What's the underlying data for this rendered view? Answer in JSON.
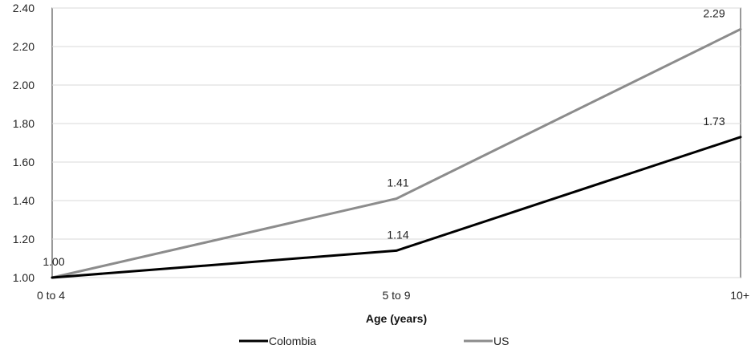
{
  "chart_data": {
    "type": "line",
    "categories": [
      "0 to 4",
      "5 to 9",
      "10+"
    ],
    "series": [
      {
        "name": "Colombia",
        "values": [
          1.0,
          1.14,
          1.73
        ],
        "labels": [
          "",
          "1.14",
          "1.73"
        ],
        "color": "#000000"
      },
      {
        "name": "US",
        "values": [
          1.0,
          1.41,
          2.29
        ],
        "labels": [
          "1.00",
          "1.41",
          "2.29"
        ],
        "color": "#8c8c8c"
      }
    ],
    "title": "",
    "xlabel": "Age (years)",
    "ylabel": "",
    "ylim": [
      1.0,
      2.4
    ],
    "yticks": [
      "1.00",
      "1.20",
      "1.40",
      "1.60",
      "1.80",
      "2.00",
      "2.20",
      "2.40"
    ],
    "grid": true,
    "legend": "bottom"
  }
}
